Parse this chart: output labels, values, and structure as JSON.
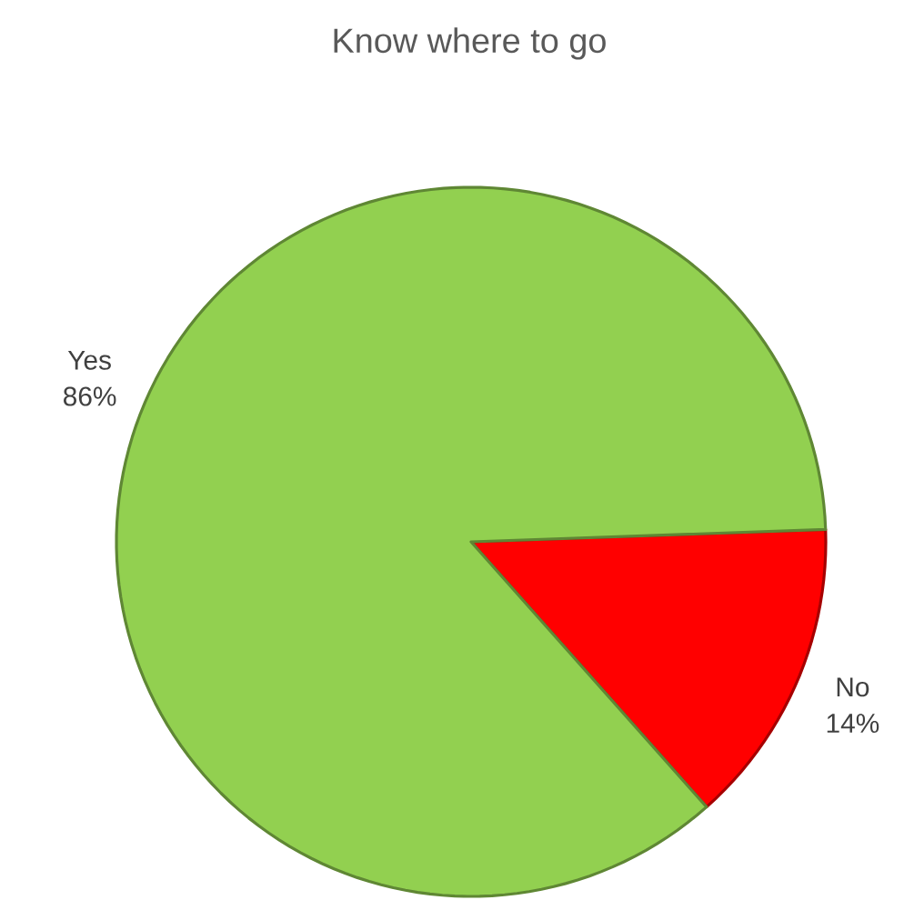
{
  "chart_data": {
    "type": "pie",
    "title": "Know where to go",
    "categories": [
      "Yes",
      "No"
    ],
    "values": [
      86,
      14
    ],
    "colors": [
      "#92d050",
      "#ff0000"
    ],
    "value_labels": [
      "86%",
      "14%"
    ]
  }
}
